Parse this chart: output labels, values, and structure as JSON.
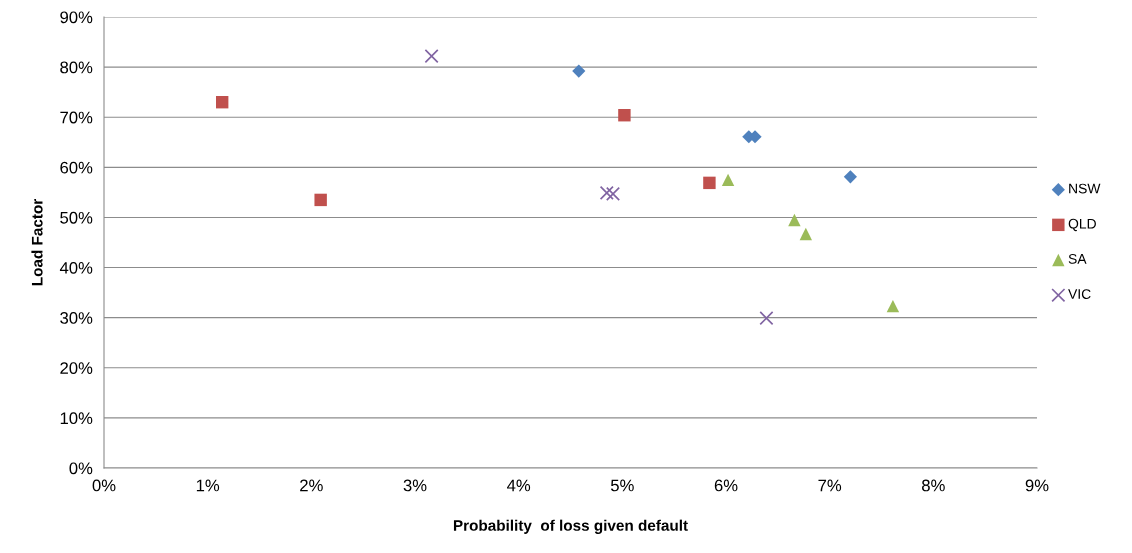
{
  "chart_data": {
    "type": "scatter",
    "xlabel": "Probability  of loss given default",
    "ylabel": "Load Factor",
    "series": [
      {
        "name": "NSW",
        "color": "#4f81bd",
        "marker": "diamond",
        "x": [
          4.58,
          6.22,
          6.28,
          7.2
        ],
        "values": [
          79.2,
          66.1,
          66.1,
          58.1
        ]
      },
      {
        "name": "QLD",
        "color": "#c0504d",
        "marker": "square",
        "x": [
          1.14,
          2.09,
          5.02,
          5.84
        ],
        "values": [
          73.0,
          53.5,
          70.4,
          56.9
        ]
      },
      {
        "name": "SA",
        "color": "#9bbb59",
        "marker": "triangle",
        "x": [
          6.02,
          6.66,
          6.77,
          7.61
        ],
        "values": [
          57.5,
          49.5,
          46.7,
          32.3
        ]
      },
      {
        "name": "VIC",
        "color": "#8064a2",
        "marker": "cross",
        "x": [
          3.16,
          4.85,
          4.91,
          6.39
        ],
        "values": [
          82.2,
          54.9,
          54.7,
          29.9
        ]
      }
    ],
    "xlim": [
      0,
      9
    ],
    "ylim": [
      0,
      90
    ],
    "xticks": [
      {
        "value": 0,
        "label": "0%"
      },
      {
        "value": 1,
        "label": "1%"
      },
      {
        "value": 2,
        "label": "2%"
      },
      {
        "value": 3,
        "label": "3%"
      },
      {
        "value": 4,
        "label": "4%"
      },
      {
        "value": 5,
        "label": "5%"
      },
      {
        "value": 6,
        "label": "6%"
      },
      {
        "value": 7,
        "label": "7%"
      },
      {
        "value": 8,
        "label": "8%"
      },
      {
        "value": 9,
        "label": "9%"
      }
    ],
    "yticks": [
      {
        "value": 0,
        "label": "0%"
      },
      {
        "value": 10,
        "label": "10%"
      },
      {
        "value": 20,
        "label": "20%"
      },
      {
        "value": 30,
        "label": "30%"
      },
      {
        "value": 40,
        "label": "40%"
      },
      {
        "value": 50,
        "label": "50%"
      },
      {
        "value": 60,
        "label": "60%"
      },
      {
        "value": 70,
        "label": "70%"
      },
      {
        "value": 80,
        "label": "80%"
      },
      {
        "value": 90,
        "label": "90%"
      }
    ],
    "grid": "y",
    "legend": "right"
  }
}
